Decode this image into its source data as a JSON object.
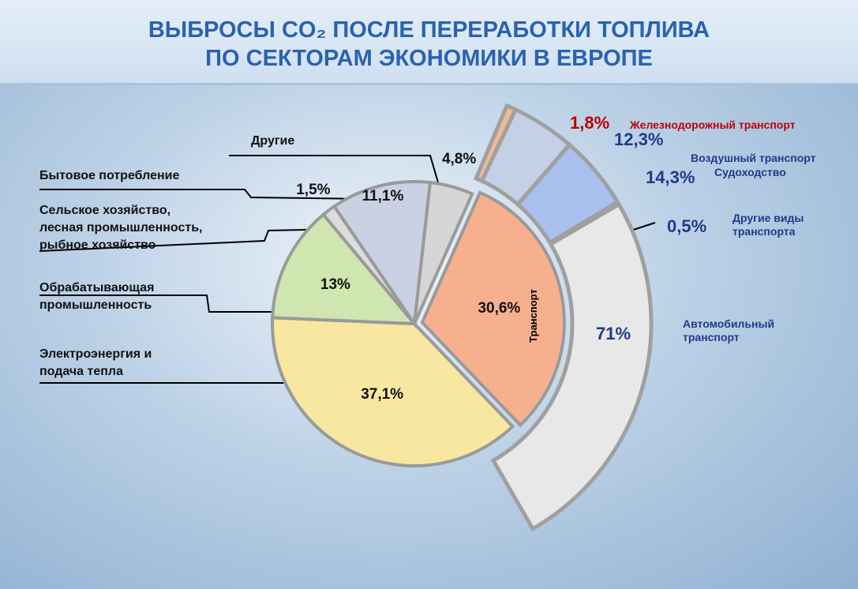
{
  "chart_data": {
    "type": "pie",
    "title": [
      "ВЫБРОСЫ CO₂ ПОСЛЕ ПЕРЕРАБОТКИ ТОПЛИВА",
      "ПО СЕКТОРАМ ЭКОНОМИКИ В ЕВРОПЕ"
    ],
    "categories": [
      "Транспорт",
      "Электроэнергия и\nподача тепла",
      "Обрабатывающая\nпромышленность",
      "Сельское хозяйство,\nлесная промышленность,\nрыбное хозяйство",
      "Бытовое потребление",
      "Другие"
    ],
    "values": [
      30.6,
      37.1,
      13,
      1.5,
      11.1,
      4.8
    ],
    "value_labels": [
      "30,6%",
      "37,1%",
      "13%",
      "1,5%",
      "11,1%",
      "4,8%"
    ],
    "colors": [
      "#f7b08e",
      "#f8e7a0",
      "#cfe6b0",
      "#dcdcdc",
      "#c9d1e2",
      "#d6d6d6"
    ],
    "breakout": {
      "categories": [
        "Железнодорожный транспорт",
        "Воздушный транспорт",
        "Судоходство",
        "Другие виды\nтранспорта",
        "Автомобильный\nтранспорт"
      ],
      "values": [
        1.8,
        12.3,
        14.3,
        0.5,
        71
      ],
      "value_labels": [
        "1,8%",
        "12,3%",
        "14,3%",
        "0,5%",
        "71%"
      ],
      "colors": [
        "#f2b98f",
        "#c3d0e6",
        "#a9bfee",
        "#dddddd",
        "#e8e8e8"
      ],
      "label_colors": [
        "#c00000",
        "#1f3a8a",
        "#1f3a8a",
        "#1f3a8a",
        "#1f3a8a"
      ]
    }
  }
}
